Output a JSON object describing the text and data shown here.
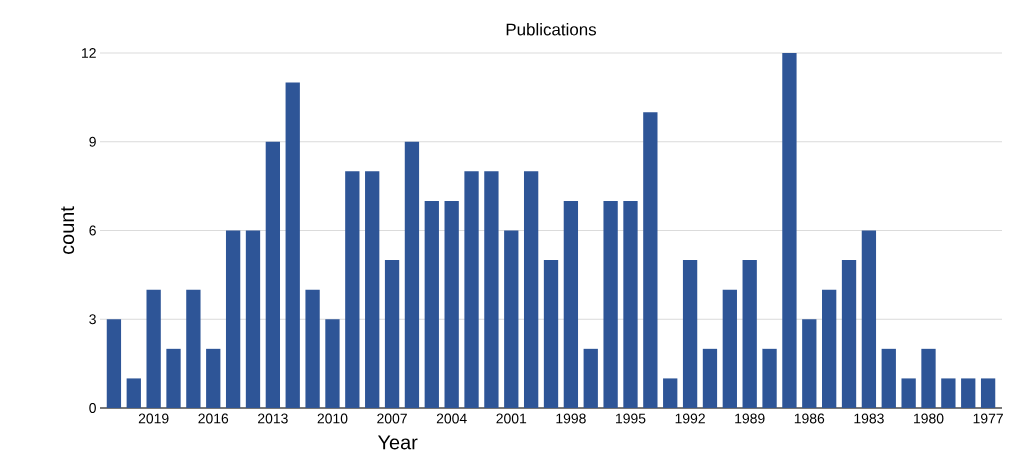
{
  "chart_data": {
    "type": "bar",
    "title": "Publications",
    "xlabel": "Year",
    "ylabel": "count",
    "categories": [
      null,
      null,
      "2019",
      null,
      null,
      "2016",
      null,
      null,
      "2013",
      null,
      null,
      "2010",
      null,
      null,
      "2007",
      null,
      null,
      "2004",
      null,
      null,
      "2001",
      null,
      null,
      "1998",
      null,
      null,
      "1995",
      null,
      null,
      "1992",
      null,
      null,
      "1989",
      null,
      null,
      "1986",
      null,
      null,
      "1983",
      null,
      null,
      "1980",
      null,
      null,
      "1977"
    ],
    "values": [
      3,
      1,
      4,
      2,
      4,
      2,
      6,
      6,
      9,
      11,
      4,
      3,
      8,
      8,
      5,
      9,
      7,
      7,
      8,
      8,
      6,
      8,
      5,
      7,
      2,
      7,
      7,
      10,
      1,
      5,
      2,
      4,
      5,
      2,
      12,
      3,
      4,
      5,
      6,
      2,
      1,
      2,
      1,
      1,
      1
    ],
    "color": "#2e5597",
    "ylim": [
      0,
      12
    ],
    "yticks": [
      0,
      3,
      6,
      9,
      12
    ],
    "grid": "y"
  }
}
